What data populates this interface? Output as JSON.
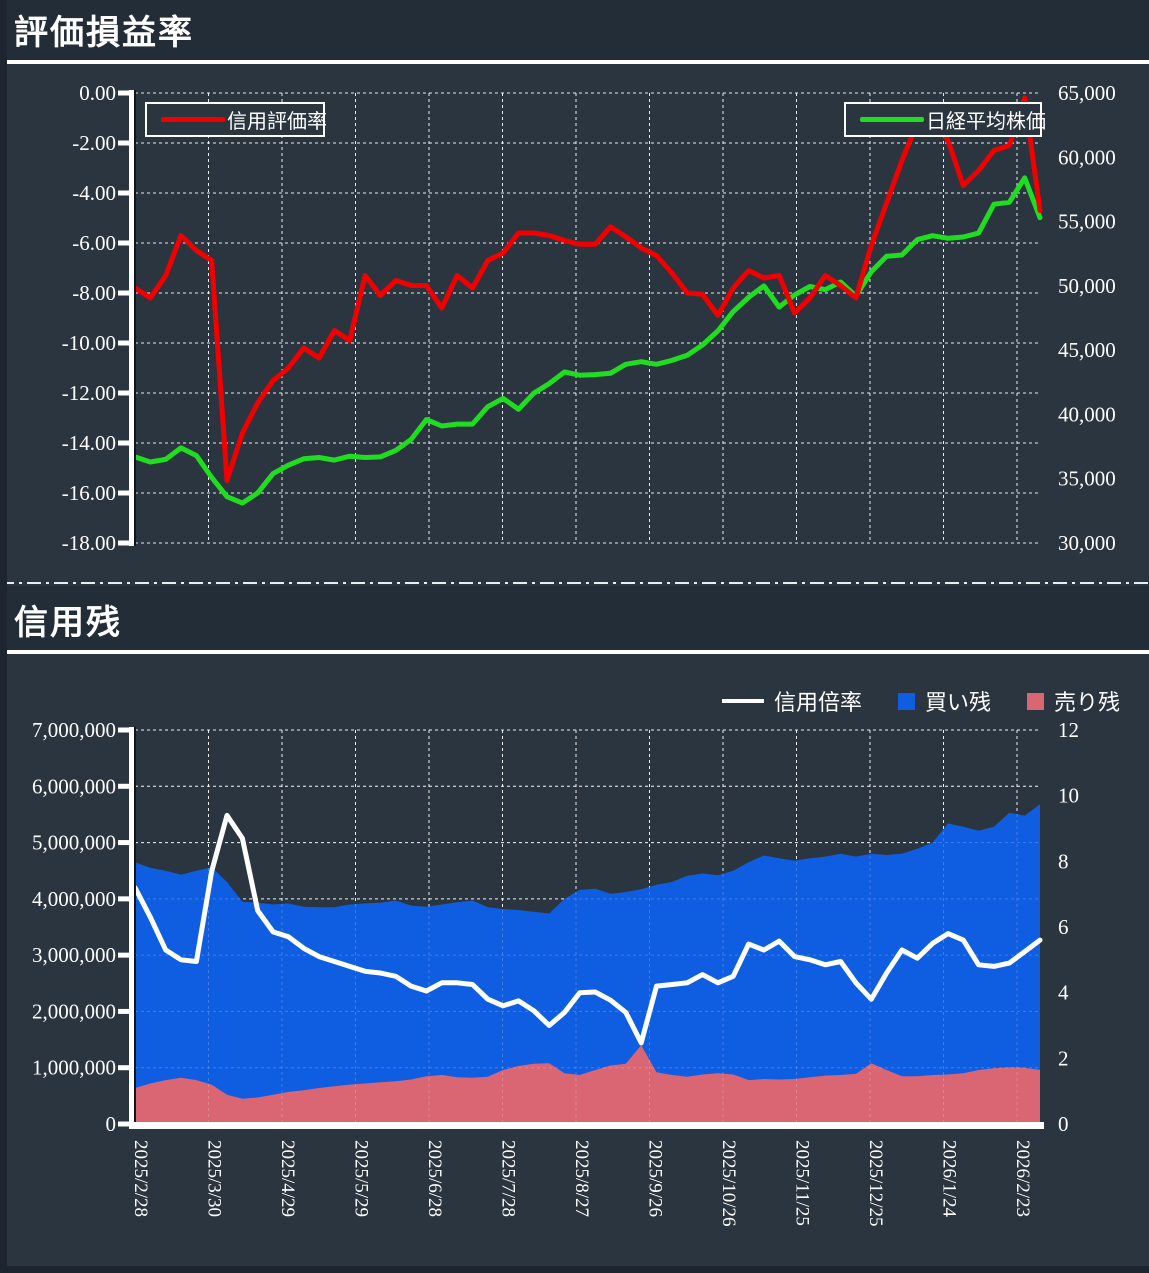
{
  "colors": {
    "background": "#2b353f",
    "header_background": "#232d37",
    "grid": "#ffffff",
    "red": "#f20000",
    "green": "#21dd21",
    "blue": "#0f5ee2",
    "pink": "#d96672",
    "white": "#ffffff",
    "axis_edge_black": "#10161c"
  },
  "panel1": {
    "title": "評価損益率",
    "legend": [
      {
        "label": "信用評価率",
        "color": "#f20000"
      },
      {
        "label": "日経平均株価",
        "color": "#21dd21"
      }
    ],
    "left_ticks": [
      "0.00",
      "-2.00",
      "-4.00",
      "-6.00",
      "-8.00",
      "-10.00",
      "-12.00",
      "-14.00",
      "-16.00",
      "-18.00"
    ],
    "right_ticks": [
      "65,000",
      "60,000",
      "55,000",
      "50,000",
      "45,000",
      "40,000",
      "35,000",
      "30,000"
    ]
  },
  "panel2": {
    "title": "信用残",
    "legend": [
      {
        "label": "信用倍率"
      },
      {
        "label": "買い残",
        "color": "#0f5ee2"
      },
      {
        "label": "売り残",
        "color": "#d96672"
      }
    ],
    "left_ticks": [
      "7,000,000",
      "6,000,000",
      "5,000,000",
      "4,000,000",
      "3,000,000",
      "2,000,000",
      "1,000,000",
      "0"
    ],
    "right_ticks": [
      "12",
      "10",
      "8",
      "6",
      "4",
      "2",
      "0"
    ]
  },
  "chart_data": [
    {
      "type": "line",
      "title": "評価損益率",
      "x_labels": [
        "2025/2/28",
        "2025/3/30",
        "2025/4/29",
        "2025/5/29",
        "2025/6/28",
        "2025/7/28",
        "2025/8/27",
        "2025/9/26",
        "2025/10/26",
        "2025/11/25",
        "2025/12/25",
        "2026/1/24",
        "2026/2/23"
      ],
      "left_ylim": [
        -18,
        0
      ],
      "right_ylim": [
        30000,
        65000
      ],
      "grid": true,
      "legend_position": "top-inside",
      "series": [
        {
          "name": "信用評価率",
          "axis": "left",
          "color": "#f20000",
          "values": [
            -7.8,
            -8.2,
            -7.3,
            -5.7,
            -6.3,
            -6.7,
            -15.5,
            -13.6,
            -12.4,
            -11.5,
            -11.0,
            -10.2,
            -10.6,
            -9.5,
            -9.9,
            -7.3,
            -8.1,
            -7.5,
            -7.7,
            -7.7,
            -8.6,
            -7.3,
            -7.8,
            -6.7,
            -6.4,
            -5.6,
            -5.6,
            -5.7,
            -5.9,
            -6.05,
            -6.05,
            -5.35,
            -5.75,
            -6.2,
            -6.5,
            -7.2,
            -8.0,
            -8.05,
            -8.9,
            -7.8,
            -7.1,
            -7.4,
            -7.3,
            -8.8,
            -8.2,
            -7.3,
            -7.7,
            -8.2,
            -6.1,
            -4.4,
            -2.7,
            -1.2,
            -0.9,
            -1.9,
            -3.7,
            -3.1,
            -2.3,
            -2.1,
            -0.2,
            -4.7
          ]
        },
        {
          "name": "日経平均株価",
          "axis": "right",
          "color": "#21dd21",
          "values": [
            36700,
            36300,
            36500,
            37400,
            36800,
            35100,
            33600,
            33100,
            33900,
            35400,
            36050,
            36550,
            36650,
            36450,
            36750,
            36650,
            36700,
            37200,
            38050,
            39600,
            39100,
            39250,
            39250,
            40600,
            41250,
            40400,
            41650,
            42400,
            43300,
            43050,
            43100,
            43200,
            43900,
            44100,
            43900,
            44200,
            44600,
            45400,
            46500,
            48000,
            49100,
            50000,
            48350,
            49300,
            49950,
            49700,
            50300,
            49200,
            51100,
            52300,
            52400,
            53600,
            53900,
            53700,
            53800,
            54100,
            56350,
            56500,
            58400,
            55300
          ]
        }
      ]
    },
    {
      "type": "area",
      "title": "信用残",
      "x_labels": [
        "2025/2/28",
        "2025/3/30",
        "2025/4/29",
        "2025/5/29",
        "2025/6/28",
        "2025/7/28",
        "2025/8/27",
        "2025/9/26",
        "2025/10/26",
        "2025/11/25",
        "2025/12/25",
        "2026/1/24",
        "2026/2/23"
      ],
      "left_ylim": [
        0,
        7000000
      ],
      "right_ylim": [
        0,
        12
      ],
      "grid": true,
      "legend_position": "top-outside",
      "series": [
        {
          "name": "買い残",
          "type": "area",
          "axis": "left",
          "color": "#0f5ee2",
          "values": [
            4650000,
            4550000,
            4500000,
            4430000,
            4500000,
            4560000,
            4300000,
            3950000,
            3930000,
            3900000,
            3920000,
            3860000,
            3850000,
            3850000,
            3900000,
            3920000,
            3930000,
            3970000,
            3880000,
            3860000,
            3900000,
            3940000,
            3970000,
            3850000,
            3820000,
            3800000,
            3770000,
            3740000,
            4000000,
            4160000,
            4180000,
            4090000,
            4120000,
            4170000,
            4250000,
            4300000,
            4410000,
            4450000,
            4420000,
            4500000,
            4650000,
            4770000,
            4720000,
            4680000,
            4720000,
            4750000,
            4800000,
            4750000,
            4800000,
            4780000,
            4800000,
            4890000,
            5000000,
            5340000,
            5280000,
            5210000,
            5280000,
            5530000,
            5480000,
            5680000
          ]
        },
        {
          "name": "売り残",
          "type": "area",
          "axis": "left",
          "color": "#d96672",
          "values": [
            640000,
            720000,
            780000,
            820000,
            780000,
            700000,
            520000,
            450000,
            470000,
            520000,
            570000,
            600000,
            640000,
            670000,
            700000,
            720000,
            740000,
            760000,
            790000,
            850000,
            870000,
            830000,
            820000,
            840000,
            960000,
            1030000,
            1070000,
            1080000,
            900000,
            870000,
            960000,
            1040000,
            1070000,
            1400000,
            920000,
            870000,
            840000,
            880000,
            900000,
            880000,
            780000,
            800000,
            790000,
            800000,
            830000,
            860000,
            870000,
            890000,
            1080000,
            960000,
            850000,
            850000,
            870000,
            880000,
            900000,
            960000,
            990000,
            1010000,
            1000000,
            960000
          ]
        },
        {
          "name": "信用倍率",
          "type": "line",
          "axis": "right",
          "color": "#ffffff",
          "values": [
            7.2,
            6.3,
            5.3,
            5.0,
            4.95,
            7.7,
            9.4,
            8.7,
            6.5,
            5.85,
            5.7,
            5.35,
            5.1,
            4.95,
            4.8,
            4.65,
            4.6,
            4.5,
            4.2,
            4.05,
            4.3,
            4.3,
            4.25,
            3.8,
            3.6,
            3.75,
            3.45,
            3.0,
            3.4,
            4.0,
            4.02,
            3.77,
            3.4,
            2.47,
            4.2,
            4.25,
            4.3,
            4.55,
            4.3,
            4.5,
            5.48,
            5.3,
            5.57,
            5.1,
            5.0,
            4.85,
            4.95,
            4.3,
            3.8,
            4.6,
            5.3,
            5.05,
            5.5,
            5.8,
            5.6,
            4.85,
            4.8,
            4.9,
            5.25,
            5.6
          ]
        }
      ]
    }
  ]
}
